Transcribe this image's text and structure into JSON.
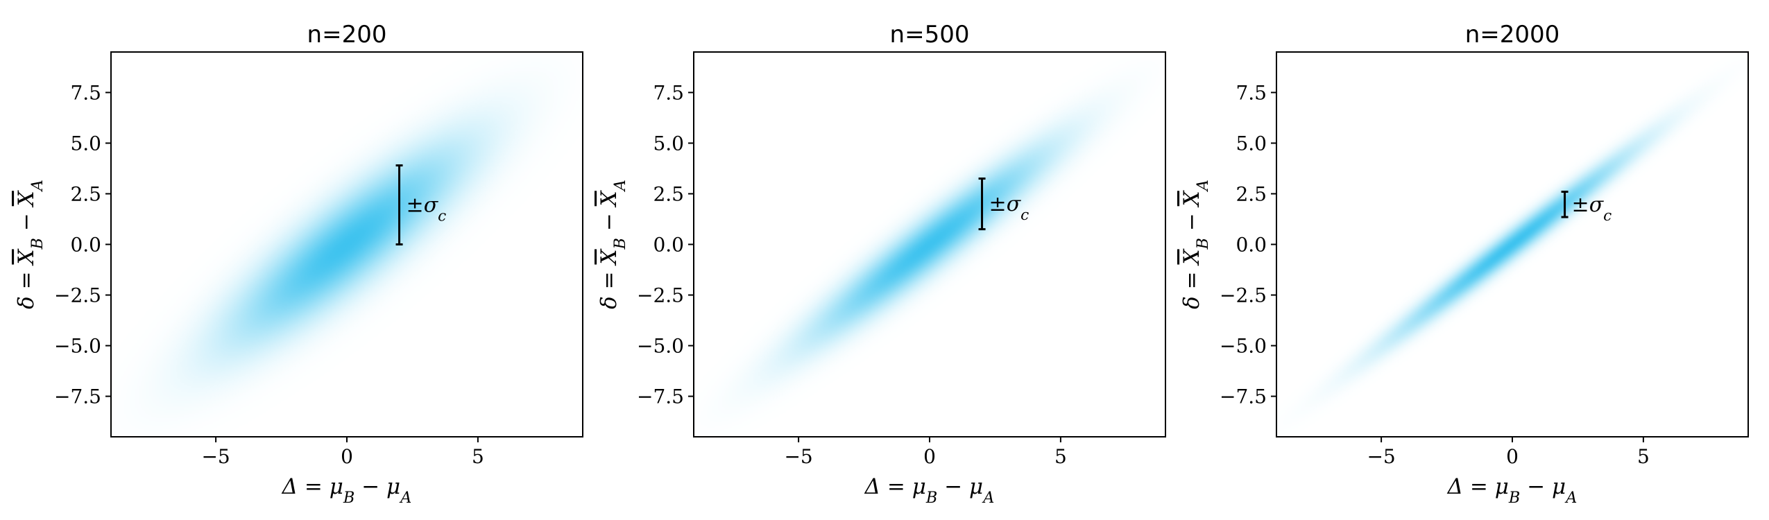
{
  "colors": {
    "density": "#3ec3ef",
    "frame": "#000000",
    "background": "#ffffff"
  },
  "chart_data": [
    {
      "type": "heatmap",
      "title": "n=200",
      "xlabel": "Δ = μ_B − μ_A",
      "ylabel": "δ = X̄_B − X̄_A",
      "xlim": [
        -9,
        9
      ],
      "ylim": [
        -9.5,
        9.5
      ],
      "xticks": [
        -5,
        0,
        5
      ],
      "xtick_labels": [
        "−5",
        "0",
        "5"
      ],
      "yticks": [
        7.5,
        5.0,
        2.5,
        0.0,
        -2.5,
        -5.0,
        -7.5
      ],
      "ytick_labels": [
        "7.5",
        "5.0",
        "2.5",
        "0.0",
        "−2.5",
        "−5.0",
        "−7.5"
      ],
      "density": {
        "center": [
          0,
          0
        ],
        "sigma_x": 3.0,
        "sigma_y": 3.25,
        "correlation": 0.87
      },
      "annotation": {
        "text": "±σ_c",
        "x": 2,
        "y_low": 0.0,
        "y_high": 3.9
      },
      "grid": false
    },
    {
      "type": "heatmap",
      "title": "n=500",
      "xlabel": "Δ = μ_B − μ_A",
      "ylabel": "δ = X̄_B − X̄_A",
      "xlim": [
        -9,
        9
      ],
      "ylim": [
        -9.5,
        9.5
      ],
      "xticks": [
        -5,
        0,
        5
      ],
      "xtick_labels": [
        "−5",
        "0",
        "5"
      ],
      "yticks": [
        7.5,
        5.0,
        2.5,
        0.0,
        -2.5,
        -5.0,
        -7.5
      ],
      "ytick_labels": [
        "7.5",
        "5.0",
        "2.5",
        "0.0",
        "−2.5",
        "−5.0",
        "−7.5"
      ],
      "density": {
        "center": [
          0,
          0
        ],
        "sigma_x": 3.0,
        "sigma_y": 3.1,
        "correlation": 0.95
      },
      "annotation": {
        "text": "±σ_c",
        "x": 2,
        "y_low": 0.75,
        "y_high": 3.25
      },
      "grid": false
    },
    {
      "type": "heatmap",
      "title": "n=2000",
      "xlabel": "Δ = μ_B − μ_A",
      "ylabel": "δ = X̄_B − X̄_A",
      "xlim": [
        -9,
        9
      ],
      "ylim": [
        -9.5,
        9.5
      ],
      "xticks": [
        -5,
        0,
        5
      ],
      "xtick_labels": [
        "−5",
        "0",
        "5"
      ],
      "yticks": [
        7.5,
        5.0,
        2.5,
        0.0,
        -2.5,
        -5.0,
        -7.5
      ],
      "ytick_labels": [
        "7.5",
        "5.0",
        "2.5",
        "0.0",
        "−2.5",
        "−5.0",
        "−7.5"
      ],
      "density": {
        "center": [
          0,
          0
        ],
        "sigma_x": 3.0,
        "sigma_y": 3.05,
        "correlation": 0.985
      },
      "annotation": {
        "text": "±σ_c",
        "x": 2,
        "y_low": 1.35,
        "y_high": 2.6
      },
      "grid": false
    }
  ]
}
